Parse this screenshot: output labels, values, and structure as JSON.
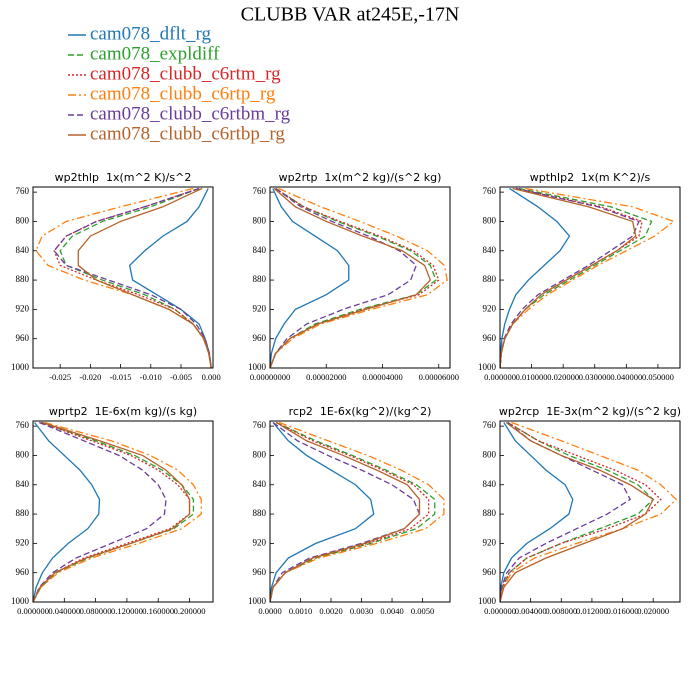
{
  "title": "CLUBB VAR at245E,-17N",
  "legend": [
    {
      "name": "cam078_dflt_rg",
      "color": "#1f77b4",
      "dash": "none"
    },
    {
      "name": "cam078_expldiff",
      "color": "#2ca02c",
      "dash": "6,3"
    },
    {
      "name": "cam078_clubb_c6rtm_rg",
      "color": "#d62728",
      "dash": "2,2"
    },
    {
      "name": "cam078_clubb_c6rtp_rg",
      "color": "#ff7f0e",
      "dash": "8,3,2,3"
    },
    {
      "name": "cam078_clubb_c6rtbm_rg",
      "color": "#6a3d9a",
      "dash": "6,3"
    },
    {
      "name": "cam078_clubb_c6rtbp_rg",
      "color": "#b5622a",
      "dash": "none"
    }
  ],
  "chart_data": [
    {
      "type": "line",
      "title": "wp2thlp  1x(m^2 K)/s^2",
      "y": [
        755,
        780,
        800,
        820,
        840,
        860,
        880,
        900,
        920,
        940,
        960,
        980,
        1000
      ],
      "ylim": [
        1000,
        753
      ],
      "yticks": [
        760,
        800,
        840,
        880,
        920,
        960,
        1000
      ],
      "xlim": [
        -0.0295,
        0.0003
      ],
      "xticks": [
        -0.025,
        {
          "value": -0.02,
          "label": "-0.020"
        },
        -0.015,
        {
          "value": -0.01,
          "label": "-0.010"
        },
        -0.005,
        {
          "value": 0,
          "label": "0.000"
        }
      ],
      "series": [
        {
          "values": [
            -0.0005,
            -0.002,
            -0.004,
            -0.008,
            -0.011,
            -0.0135,
            -0.013,
            -0.009,
            -0.005,
            -0.002,
            -0.001,
            -0.0003,
            0
          ]
        },
        {
          "values": [
            -0.002,
            -0.01,
            -0.018,
            -0.023,
            -0.025,
            -0.024,
            -0.018,
            -0.011,
            -0.006,
            -0.003,
            -0.0012,
            -0.0004,
            0
          ]
        },
        {
          "values": [
            -0.002,
            -0.011,
            -0.019,
            -0.024,
            -0.026,
            -0.025,
            -0.019,
            -0.012,
            -0.006,
            -0.003,
            -0.0012,
            -0.0004,
            0
          ]
        },
        {
          "values": [
            -0.003,
            -0.015,
            -0.024,
            -0.028,
            -0.029,
            -0.027,
            -0.021,
            -0.013,
            -0.007,
            -0.003,
            -0.0013,
            -0.0004,
            0
          ]
        },
        {
          "values": [
            -0.002,
            -0.011,
            -0.019,
            -0.024,
            -0.026,
            -0.024,
            -0.017,
            -0.01,
            -0.005,
            -0.0025,
            -0.001,
            -0.0003,
            0
          ]
        },
        {
          "values": [
            -0.0015,
            -0.008,
            -0.015,
            -0.02,
            -0.022,
            -0.022,
            -0.019,
            -0.013,
            -0.007,
            -0.003,
            -0.0012,
            -0.0004,
            0
          ]
        }
      ]
    },
    {
      "type": "line",
      "title": "wp2rtp  1x(m^2 kg)/(s^2 kg)",
      "y": [
        755,
        780,
        800,
        820,
        840,
        860,
        880,
        900,
        920,
        940,
        960,
        980,
        1000
      ],
      "ylim": [
        1000,
        753
      ],
      "yticks": [
        760,
        800,
        840,
        880,
        920,
        960,
        1000
      ],
      "xlim": [
        0,
        6.4e-05
      ],
      "xticks": [
        {
          "value": 0,
          "label": "0.00000000"
        },
        {
          "value": 2e-05,
          "label": "0.00002000"
        },
        {
          "value": 4e-05,
          "label": "0.00004000"
        },
        {
          "value": 6e-05,
          "label": "0.00006000"
        }
      ],
      "series": [
        {
          "values": [
            1e-06,
            4e-06,
            8e-06,
            1.6e-05,
            2.4e-05,
            2.8e-05,
            2.8e-05,
            2e-05,
            9e-06,
            5e-06,
            2e-06,
            5e-07,
            0
          ]
        },
        {
          "values": [
            2e-06,
            1.2e-05,
            2.4e-05,
            3.8e-05,
            5e-05,
            5.7e-05,
            5.9e-05,
            5.2e-05,
            3.2e-05,
            1.6e-05,
            7e-06,
            2e-06,
            0
          ]
        },
        {
          "values": [
            2e-06,
            1.2e-05,
            2.5e-05,
            3.9e-05,
            5.1e-05,
            5.8e-05,
            6e-05,
            5.3e-05,
            3.3e-05,
            1.7e-05,
            7e-06,
            2e-06,
            0
          ]
        },
        {
          "values": [
            3e-06,
            1.8e-05,
            3.2e-05,
            4.5e-05,
            5.6e-05,
            6.2e-05,
            6.3e-05,
            5.6e-05,
            3.6e-05,
            1.8e-05,
            8e-06,
            2e-06,
            0
          ]
        },
        {
          "values": [
            2e-06,
            1.1e-05,
            2.2e-05,
            3.5e-05,
            4.6e-05,
            5.2e-05,
            5e-05,
            4.2e-05,
            2.6e-05,
            1.3e-05,
            6e-06,
            2e-06,
            0
          ]
        },
        {
          "values": [
            1.5e-06,
            9e-06,
            2e-05,
            3.3e-05,
            4.7e-05,
            5.5e-05,
            5.7e-05,
            5.2e-05,
            3.4e-05,
            1.7e-05,
            7e-06,
            2e-06,
            0
          ]
        }
      ]
    },
    {
      "type": "line",
      "title": "wpthlp2  1x(m K^2)/s",
      "y": [
        755,
        780,
        800,
        820,
        840,
        860,
        880,
        900,
        920,
        940,
        960,
        980,
        1000
      ],
      "ylim": [
        1000,
        753
      ],
      "yticks": [
        760,
        800,
        840,
        880,
        920,
        960,
        1000
      ],
      "xlim": [
        0,
        0.057
      ],
      "xticks": [
        {
          "value": 0,
          "label": "0.000000"
        },
        {
          "value": 0.01,
          "label": "0.010000"
        },
        {
          "value": 0.02,
          "label": "0.020000"
        },
        {
          "value": 0.03,
          "label": "0.030000"
        },
        {
          "value": 0.04,
          "label": "0.040000"
        },
        {
          "value": 0.05,
          "label": "0.050000"
        }
      ],
      "series": [
        {
          "values": [
            0.003,
            0.012,
            0.018,
            0.022,
            0.019,
            0.014,
            0.009,
            0.005,
            0.003,
            0.0015,
            0.0006,
            0.0002,
            0
          ]
        },
        {
          "values": [
            0.006,
            0.035,
            0.048,
            0.046,
            0.038,
            0.03,
            0.022,
            0.014,
            0.008,
            0.004,
            0.0015,
            0.0004,
            0
          ]
        },
        {
          "values": [
            0.005,
            0.032,
            0.045,
            0.044,
            0.037,
            0.029,
            0.021,
            0.013,
            0.008,
            0.004,
            0.0015,
            0.0004,
            0
          ]
        },
        {
          "values": [
            0.008,
            0.042,
            0.055,
            0.049,
            0.04,
            0.031,
            0.023,
            0.015,
            0.009,
            0.004,
            0.0015,
            0.0004,
            0
          ]
        },
        {
          "values": [
            0.005,
            0.031,
            0.044,
            0.042,
            0.035,
            0.028,
            0.02,
            0.012,
            0.007,
            0.0035,
            0.0013,
            0.0004,
            0
          ]
        },
        {
          "values": [
            0.004,
            0.028,
            0.042,
            0.043,
            0.037,
            0.029,
            0.021,
            0.013,
            0.008,
            0.004,
            0.0015,
            0.0004,
            0
          ]
        }
      ]
    },
    {
      "type": "line",
      "title": "wprtp2  1E-6x(m kg)/(s kg)",
      "y": [
        755,
        780,
        800,
        820,
        840,
        860,
        880,
        900,
        920,
        940,
        960,
        980,
        1000
      ],
      "ylim": [
        1000,
        753
      ],
      "yticks": [
        760,
        800,
        840,
        880,
        920,
        960,
        1000
      ],
      "xlim": [
        0,
        0.23
      ],
      "xticks": [
        {
          "value": 0,
          "label": "0.000000"
        },
        {
          "value": 0.04,
          "label": "0.040000"
        },
        {
          "value": 0.08,
          "label": "0.080000"
        },
        {
          "value": 0.12,
          "label": "0.120000"
        },
        {
          "value": 0.16,
          "label": "0.160000"
        },
        {
          "value": 0.2,
          "label": "0.200000"
        }
      ],
      "series": [
        {
          "values": [
            0.002,
            0.02,
            0.04,
            0.06,
            0.075,
            0.085,
            0.084,
            0.07,
            0.045,
            0.025,
            0.012,
            0.004,
            0
          ]
        },
        {
          "values": [
            0.01,
            0.08,
            0.13,
            0.165,
            0.19,
            0.205,
            0.205,
            0.18,
            0.125,
            0.07,
            0.03,
            0.01,
            0
          ]
        },
        {
          "values": [
            0.01,
            0.075,
            0.125,
            0.16,
            0.185,
            0.2,
            0.2,
            0.175,
            0.12,
            0.065,
            0.028,
            0.009,
            0
          ]
        },
        {
          "values": [
            0.015,
            0.1,
            0.15,
            0.185,
            0.205,
            0.215,
            0.215,
            0.19,
            0.135,
            0.075,
            0.032,
            0.01,
            0
          ]
        },
        {
          "values": [
            0.008,
            0.065,
            0.11,
            0.14,
            0.16,
            0.17,
            0.168,
            0.145,
            0.1,
            0.055,
            0.025,
            0.008,
            0
          ]
        },
        {
          "values": [
            0.012,
            0.085,
            0.14,
            0.17,
            0.19,
            0.2,
            0.2,
            0.178,
            0.125,
            0.068,
            0.028,
            0.009,
            0
          ]
        }
      ]
    },
    {
      "type": "line",
      "title": "rcp2  1E-6x(kg^2)/(kg^2)",
      "y": [
        755,
        780,
        800,
        820,
        840,
        860,
        880,
        900,
        920,
        940,
        960,
        980,
        1000
      ],
      "ylim": [
        1000,
        753
      ],
      "yticks": [
        760,
        800,
        840,
        880,
        920,
        960,
        1000
      ],
      "xlim": [
        0,
        0.0059
      ],
      "xticks": [
        {
          "value": 0,
          "label": "0.0000"
        },
        {
          "value": 0.001,
          "label": "0.0010"
        },
        {
          "value": 0.002,
          "label": "0.0020"
        },
        {
          "value": 0.003,
          "label": "0.0030"
        },
        {
          "value": 0.004,
          "label": "0.0040"
        },
        {
          "value": 0.005,
          "label": "0.0050"
        }
      ],
      "series": [
        {
          "values": [
            0.0001,
            0.0006,
            0.0012,
            0.002,
            0.0028,
            0.0033,
            0.0034,
            0.0028,
            0.0015,
            0.0006,
            0.0002,
            5e-05,
            0
          ]
        },
        {
          "values": [
            0.0002,
            0.0015,
            0.0027,
            0.0038,
            0.0048,
            0.0054,
            0.0054,
            0.0048,
            0.0033,
            0.0015,
            0.0005,
            0.0001,
            0
          ]
        },
        {
          "values": [
            0.0002,
            0.0014,
            0.0026,
            0.0037,
            0.0047,
            0.0052,
            0.0052,
            0.0046,
            0.0032,
            0.0014,
            0.0005,
            0.0001,
            0
          ]
        },
        {
          "values": [
            0.0003,
            0.0019,
            0.0032,
            0.0043,
            0.0052,
            0.0057,
            0.0057,
            0.0051,
            0.0035,
            0.0016,
            0.0005,
            0.0001,
            0
          ]
        },
        {
          "values": [
            0.0001,
            0.0009,
            0.0019,
            0.003,
            0.004,
            0.0047,
            0.0049,
            0.0044,
            0.003,
            0.0013,
            0.0004,
            0.0001,
            0
          ]
        },
        {
          "values": [
            0.0002,
            0.0012,
            0.0024,
            0.0035,
            0.0045,
            0.0049,
            0.0049,
            0.0044,
            0.0031,
            0.0014,
            0.0005,
            0.0001,
            0
          ]
        }
      ]
    },
    {
      "type": "line",
      "title": "wp2rcp  1E-3x(m^2 kg)/(s^2 kg)",
      "y": [
        755,
        780,
        800,
        820,
        840,
        860,
        880,
        900,
        920,
        940,
        960,
        980,
        1000
      ],
      "ylim": [
        1000,
        753
      ],
      "yticks": [
        760,
        800,
        840,
        880,
        920,
        960,
        1000
      ],
      "xlim": [
        0,
        0.0235
      ],
      "xticks": [
        {
          "value": 0,
          "label": "0.000000"
        },
        {
          "value": 0.004,
          "label": "0.004000"
        },
        {
          "value": 0.008,
          "label": "0.008000"
        },
        {
          "value": 0.012,
          "label": "0.012000"
        },
        {
          "value": 0.016,
          "label": "0.016000"
        },
        {
          "value": 0.02,
          "label": "0.020000"
        }
      ],
      "series": [
        {
          "values": [
            0.0005,
            0.002,
            0.004,
            0.006,
            0.0085,
            0.0095,
            0.009,
            0.0065,
            0.0035,
            0.0015,
            0.0005,
            0.0001,
            0
          ]
        },
        {
          "values": [
            0.001,
            0.005,
            0.009,
            0.014,
            0.018,
            0.02,
            0.018,
            0.013,
            0.008,
            0.0035,
            0.0012,
            0.0003,
            0
          ]
        },
        {
          "values": [
            0.001,
            0.005,
            0.01,
            0.015,
            0.019,
            0.021,
            0.019,
            0.014,
            0.008,
            0.0035,
            0.0012,
            0.0003,
            0
          ]
        },
        {
          "values": [
            0.0015,
            0.008,
            0.013,
            0.018,
            0.021,
            0.023,
            0.021,
            0.016,
            0.01,
            0.0045,
            0.0015,
            0.0004,
            0
          ]
        },
        {
          "values": [
            0.001,
            0.004,
            0.008,
            0.012,
            0.016,
            0.017,
            0.014,
            0.01,
            0.006,
            0.0025,
            0.0009,
            0.0002,
            0
          ]
        },
        {
          "values": [
            0.0008,
            0.004,
            0.008,
            0.013,
            0.017,
            0.02,
            0.019,
            0.016,
            0.011,
            0.006,
            0.002,
            0.0005,
            0
          ]
        }
      ]
    }
  ]
}
